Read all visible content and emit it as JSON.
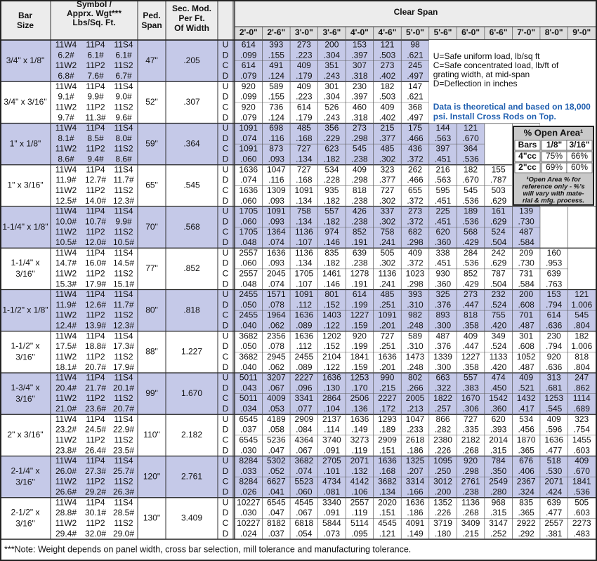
{
  "header": {
    "bar_size": [
      "Bar",
      "Size"
    ],
    "symbol": [
      "Symbol /",
      "Apprx. Wgt***",
      "Lbs/Sq. Ft."
    ],
    "ped_span": [
      "Ped.",
      "Span"
    ],
    "sec_mod": [
      "Sec. Mod.",
      "Per Ft.",
      "Of Width"
    ],
    "clear_span": "Clear Span"
  },
  "spans": [
    "2'-0\"",
    "2'-6\"",
    "3'-0\"",
    "3'-6\"",
    "4'-0\"",
    "4'-6\"",
    "5'-0\"",
    "5'-6\"",
    "6'-0\"",
    "6'-6\"",
    "7'-0\"",
    "8'-0\"",
    "9'-0\""
  ],
  "load_letters": [
    "U",
    "D",
    "C",
    "D"
  ],
  "groups": [
    {
      "size": [
        "3/4\" x 1/8\""
      ],
      "symbols": [
        [
          "11W4",
          "11P4",
          "11S4"
        ],
        [
          "6.2#",
          "6.1#",
          "6.1#"
        ],
        [
          "11W2",
          "11P2",
          "11S2"
        ],
        [
          "6.8#",
          "7.6#",
          "6.7#"
        ]
      ],
      "ped_span": "47\"",
      "sec_mod": ".205",
      "rows": [
        [
          "614",
          "393",
          "273",
          "200",
          "153",
          "121",
          "98"
        ],
        [
          ".099",
          ".155",
          ".223",
          ".304",
          ".397",
          ".503",
          ".621"
        ],
        [
          "614",
          "491",
          "409",
          "351",
          "307",
          "273",
          "245"
        ],
        [
          ".079",
          ".124",
          ".179",
          ".243",
          ".318",
          ".402",
          ".497"
        ]
      ]
    },
    {
      "size": [
        "3/4\" x 3/16\""
      ],
      "symbols": [
        [
          "11W4",
          "11P4",
          "11S4"
        ],
        [
          "9.1#",
          "9.9#",
          "9.0#"
        ],
        [
          "11W2",
          "11P2",
          "11S2"
        ],
        [
          "9.7#",
          "11.3#",
          "9.6#"
        ]
      ],
      "ped_span": "52\"",
      "sec_mod": ".307",
      "rows": [
        [
          "920",
          "589",
          "409",
          "301",
          "230",
          "182",
          "147"
        ],
        [
          ".099",
          ".155",
          ".223",
          ".304",
          ".397",
          ".503",
          ".621"
        ],
        [
          "920",
          "736",
          "614",
          "526",
          "460",
          "409",
          "368"
        ],
        [
          ".079",
          ".124",
          ".179",
          ".243",
          ".318",
          ".402",
          ".497"
        ]
      ]
    },
    {
      "size": [
        "1\" x 1/8\""
      ],
      "symbols": [
        [
          "11W4",
          "11P4",
          "11S4"
        ],
        [
          "8.1#",
          "8.5#",
          "8.0#"
        ],
        [
          "11W2",
          "11P2",
          "11S2"
        ],
        [
          "8.6#",
          "9.4#",
          "8.6#"
        ]
      ],
      "ped_span": "59\"",
      "sec_mod": ".364",
      "rows": [
        [
          "1091",
          "698",
          "485",
          "356",
          "273",
          "215",
          "175",
          "144",
          "121"
        ],
        [
          ".074",
          ".116",
          ".168",
          ".229",
          ".298",
          ".377",
          ".466",
          ".563",
          ".670"
        ],
        [
          "1091",
          "873",
          "727",
          "623",
          "545",
          "485",
          "436",
          "397",
          "364"
        ],
        [
          ".060",
          ".093",
          ".134",
          ".182",
          ".238",
          ".302",
          ".372",
          ".451",
          ".536"
        ]
      ]
    },
    {
      "size": [
        "1\" x 3/16\""
      ],
      "symbols": [
        [
          "11W4",
          "11P4",
          "11S4"
        ],
        [
          "11.9#",
          "12.7#",
          "11.7#"
        ],
        [
          "11W2",
          "11P2",
          "11S2"
        ],
        [
          "12.5#",
          "14.0#",
          "12.3#"
        ]
      ],
      "ped_span": "65\"",
      "sec_mod": ".545",
      "rows": [
        [
          "1636",
          "1047",
          "727",
          "534",
          "409",
          "323",
          "262",
          "216",
          "182",
          "155"
        ],
        [
          ".074",
          ".116",
          ".168",
          ".228",
          ".298",
          ".377",
          ".466",
          ".563",
          ".670",
          ".787"
        ],
        [
          "1636",
          "1309",
          "1091",
          "935",
          "818",
          "727",
          "655",
          "595",
          "545",
          "503"
        ],
        [
          ".060",
          ".093",
          ".134",
          ".182",
          ".238",
          ".302",
          ".372",
          ".451",
          ".536",
          ".629"
        ]
      ]
    },
    {
      "size": [
        "1-1/4\" x 1/8\""
      ],
      "symbols": [
        [
          "11W4",
          "11P4",
          "11S4"
        ],
        [
          "10.0#",
          "10.7#",
          "9.9#"
        ],
        [
          "11W2",
          "11P2",
          "11S2"
        ],
        [
          "10.5#",
          "12.0#",
          "10.5#"
        ]
      ],
      "ped_span": "70\"",
      "sec_mod": ".568",
      "rows": [
        [
          "1705",
          "1091",
          "758",
          "557",
          "426",
          "337",
          "273",
          "225",
          "189",
          "161",
          "139"
        ],
        [
          ".060",
          ".093",
          ".134",
          ".182",
          ".238",
          ".302",
          ".372",
          ".451",
          ".536",
          ".629",
          ".730"
        ],
        [
          "1705",
          "1364",
          "1136",
          "974",
          "852",
          "758",
          "682",
          "620",
          "568",
          "524",
          "487"
        ],
        [
          ".048",
          ".074",
          ".107",
          ".146",
          ".191",
          ".241",
          ".298",
          ".360",
          ".429",
          ".504",
          ".584"
        ]
      ]
    },
    {
      "size": [
        "1-1/4\" x",
        "3/16\""
      ],
      "symbols": [
        [
          "11W4",
          "11P4",
          "11S4"
        ],
        [
          "14.7#",
          "16.0#",
          "14.5#"
        ],
        [
          "11W2",
          "11P2",
          "11S2"
        ],
        [
          "15.3#",
          "17.9#",
          "15.1#"
        ]
      ],
      "ped_span": "77\"",
      "sec_mod": ".852",
      "rows": [
        [
          "2557",
          "1636",
          "1136",
          "835",
          "639",
          "505",
          "409",
          "338",
          "284",
          "242",
          "209",
          "160"
        ],
        [
          ".060",
          ".093",
          ".134",
          ".182",
          ".238",
          ".302",
          ".372",
          ".451",
          ".536",
          ".629",
          ".730",
          ".953"
        ],
        [
          "2557",
          "2045",
          "1705",
          "1461",
          "1278",
          "1136",
          "1023",
          "930",
          "852",
          "787",
          "731",
          "639"
        ],
        [
          ".048",
          ".074",
          ".107",
          ".146",
          ".191",
          ".241",
          ".298",
          ".360",
          ".429",
          ".504",
          ".584",
          ".763"
        ]
      ]
    },
    {
      "size": [
        "1-1/2\" x 1/8\""
      ],
      "symbols": [
        [
          "11W4",
          "11P4",
          "11S4"
        ],
        [
          "11.9#",
          "12.6#",
          "11.7#"
        ],
        [
          "11W2",
          "11P2",
          "11S2"
        ],
        [
          "12.4#",
          "13.9#",
          "12.3#"
        ]
      ],
      "ped_span": "80\"",
      "sec_mod": ".818",
      "rows": [
        [
          "2455",
          "1571",
          "1091",
          "801",
          "614",
          "485",
          "393",
          "325",
          "273",
          "232",
          "200",
          "153",
          "121"
        ],
        [
          ".050",
          ".078",
          ".112",
          ".152",
          ".199",
          ".251",
          ".310",
          ".376",
          ".447",
          ".524",
          ".608",
          ".794",
          "1.006"
        ],
        [
          "2455",
          "1964",
          "1636",
          "1403",
          "1227",
          "1091",
          "982",
          "893",
          "818",
          "755",
          "701",
          "614",
          "545"
        ],
        [
          ".040",
          ".062",
          ".089",
          ".122",
          ".159",
          ".201",
          ".248",
          ".300",
          ".358",
          ".420",
          ".487",
          ".636",
          ".804"
        ]
      ]
    },
    {
      "size": [
        "1-1/2\" x",
        "3/16\""
      ],
      "symbols": [
        [
          "11W4",
          "11P4",
          "11S4"
        ],
        [
          "17.5#",
          "18.8#",
          "17.3#"
        ],
        [
          "11W2",
          "11P2",
          "11S2"
        ],
        [
          "18.1#",
          "20.7#",
          "17.9#"
        ]
      ],
      "ped_span": "88\"",
      "sec_mod": "1.227",
      "rows": [
        [
          "3682",
          "2356",
          "1636",
          "1202",
          "920",
          "727",
          "589",
          "487",
          "409",
          "349",
          "301",
          "230",
          "182"
        ],
        [
          ".050",
          ".078",
          ".112",
          ".152",
          ".199",
          ".251",
          ".310",
          ".376",
          ".447",
          ".524",
          ".608",
          ".794",
          "1.006"
        ],
        [
          "3682",
          "2945",
          "2455",
          "2104",
          "1841",
          "1636",
          "1473",
          "1339",
          "1227",
          "1133",
          "1052",
          "920",
          "818"
        ],
        [
          ".040",
          ".062",
          ".089",
          ".122",
          ".159",
          ".201",
          ".248",
          ".300",
          ".358",
          ".420",
          ".487",
          ".636",
          ".804"
        ]
      ]
    },
    {
      "size": [
        "1-3/4\" x",
        "3/16\""
      ],
      "symbols": [
        [
          "11W4",
          "11P4",
          "11S4"
        ],
        [
          "20.4#",
          "21.7#",
          "20.1#"
        ],
        [
          "11W2",
          "11P2",
          "11S2"
        ],
        [
          "21.0#",
          "23.6#",
          "20.7#"
        ]
      ],
      "ped_span": "99\"",
      "sec_mod": "1.670",
      "rows": [
        [
          "5011",
          "3207",
          "2227",
          "1636",
          "1253",
          "990",
          "802",
          "663",
          "557",
          "474",
          "409",
          "313",
          "247"
        ],
        [
          ".043",
          ".067",
          ".096",
          ".130",
          ".170",
          ".215",
          ".266",
          ".322",
          ".383",
          ".450",
          ".521",
          ".681",
          ".862"
        ],
        [
          "5011",
          "4009",
          "3341",
          "2864",
          "2506",
          "2227",
          "2005",
          "1822",
          "1670",
          "1542",
          "1432",
          "1253",
          "1114"
        ],
        [
          ".034",
          ".053",
          ".077",
          ".104",
          ".136",
          ".172",
          ".213",
          ".257",
          ".306",
          ".360",
          ".417",
          ".545",
          ".689"
        ]
      ]
    },
    {
      "size": [
        "2\" x 3/16\""
      ],
      "symbols": [
        [
          "11W4",
          "11P4",
          "11S4"
        ],
        [
          "23.2#",
          "24.5#",
          "22.9#"
        ],
        [
          "11W2",
          "11P2",
          "11S2"
        ],
        [
          "23.8#",
          "26.4#",
          "23.5#"
        ]
      ],
      "ped_span": "110\"",
      "sec_mod": "2.182",
      "rows": [
        [
          "6545",
          "4189",
          "2909",
          "2137",
          "1636",
          "1293",
          "1047",
          "866",
          "727",
          "620",
          "534",
          "409",
          "323"
        ],
        [
          ".037",
          ".058",
          ".084",
          ".114",
          ".149",
          ".189",
          ".233",
          ".282",
          ".335",
          ".393",
          ".456",
          ".596",
          ".754"
        ],
        [
          "6545",
          "5236",
          "4364",
          "3740",
          "3273",
          "2909",
          "2618",
          "2380",
          "2182",
          "2014",
          "1870",
          "1636",
          "1455"
        ],
        [
          ".030",
          ".047",
          ".067",
          ".091",
          ".119",
          ".151",
          ".186",
          ".226",
          ".268",
          ".315",
          ".365",
          ".477",
          ".603"
        ]
      ]
    },
    {
      "size": [
        "2-1/4\" x",
        "3/16\""
      ],
      "symbols": [
        [
          "11W4",
          "11P4",
          "11S4"
        ],
        [
          "26.0#",
          "27.3#",
          "25.7#"
        ],
        [
          "11W2",
          "11P2",
          "11S2"
        ],
        [
          "26.6#",
          "29.2#",
          "26.3#"
        ]
      ],
      "ped_span": "120\"",
      "sec_mod": "2.761",
      "rows": [
        [
          "8284",
          "5302",
          "3682",
          "2705",
          "2071",
          "1636",
          "1325",
          "1095",
          "920",
          "784",
          "676",
          "518",
          "409"
        ],
        [
          ".033",
          ".052",
          ".074",
          ".101",
          ".132",
          ".168",
          ".207",
          ".250",
          ".298",
          ".350",
          ".406",
          ".530",
          ".670"
        ],
        [
          "8284",
          "6627",
          "5523",
          "4734",
          "4142",
          "3682",
          "3314",
          "3012",
          "2761",
          "2549",
          "2367",
          "2071",
          "1841"
        ],
        [
          ".026",
          ".041",
          ".060",
          ".081",
          ".106",
          ".134",
          ".166",
          ".200",
          ".238",
          ".280",
          ".324",
          ".424",
          ".536"
        ]
      ]
    },
    {
      "size": [
        "2-1/2\" x",
        "3/16\""
      ],
      "symbols": [
        [
          "11W4",
          "11P4",
          "11S4"
        ],
        [
          "28.8#",
          "30.1#",
          "28.5#"
        ],
        [
          "11W2",
          "11P2",
          "11S2"
        ],
        [
          "29.4#",
          "32.0#",
          "29.0#"
        ]
      ],
      "ped_span": "130\"",
      "sec_mod": "3.409",
      "rows": [
        [
          "10227",
          "6545",
          "4545",
          "3340",
          "2557",
          "2020",
          "1636",
          "1352",
          "1136",
          "968",
          "835",
          "639",
          "505"
        ],
        [
          ".030",
          ".047",
          ".067",
          ".091",
          ".119",
          ".151",
          ".186",
          ".226",
          ".268",
          ".315",
          ".365",
          ".477",
          ".603"
        ],
        [
          "10227",
          "8182",
          "6818",
          "5844",
          "5114",
          "4545",
          "4091",
          "3719",
          "3409",
          "3147",
          "2922",
          "2557",
          "2273"
        ],
        [
          ".024",
          ".037",
          ".054",
          ".073",
          ".095",
          ".121",
          ".149",
          ".180",
          ".215",
          ".252",
          ".292",
          ".381",
          ".483"
        ]
      ]
    }
  ],
  "legend": {
    "lines": [
      "U=Safe uniform load, lb/sq ft",
      "C=Safe concentrated load, lb/ft of",
      "grating width, at mid-span",
      "D=Deflection in inches"
    ],
    "note": [
      "Data is theoretical and based on 18,000",
      "psi.  Install Cross Rods on Top."
    ]
  },
  "open_area": {
    "title": "% Open Area¹",
    "columns": [
      "Bars",
      "1/8\"",
      "3/16\""
    ],
    "rows": [
      [
        "4\"cc",
        "75%",
        "66%"
      ],
      [
        "2\"cc",
        "69%",
        "60%"
      ]
    ],
    "footnote": [
      "¹Open Area % for",
      "reference only - %'s",
      "will vary with mate-",
      "rial & mfg. process."
    ]
  },
  "footnote": "***Note: Weight depends on panel width, cross bar selection, mill tolerance and manufacturing tolerance."
}
